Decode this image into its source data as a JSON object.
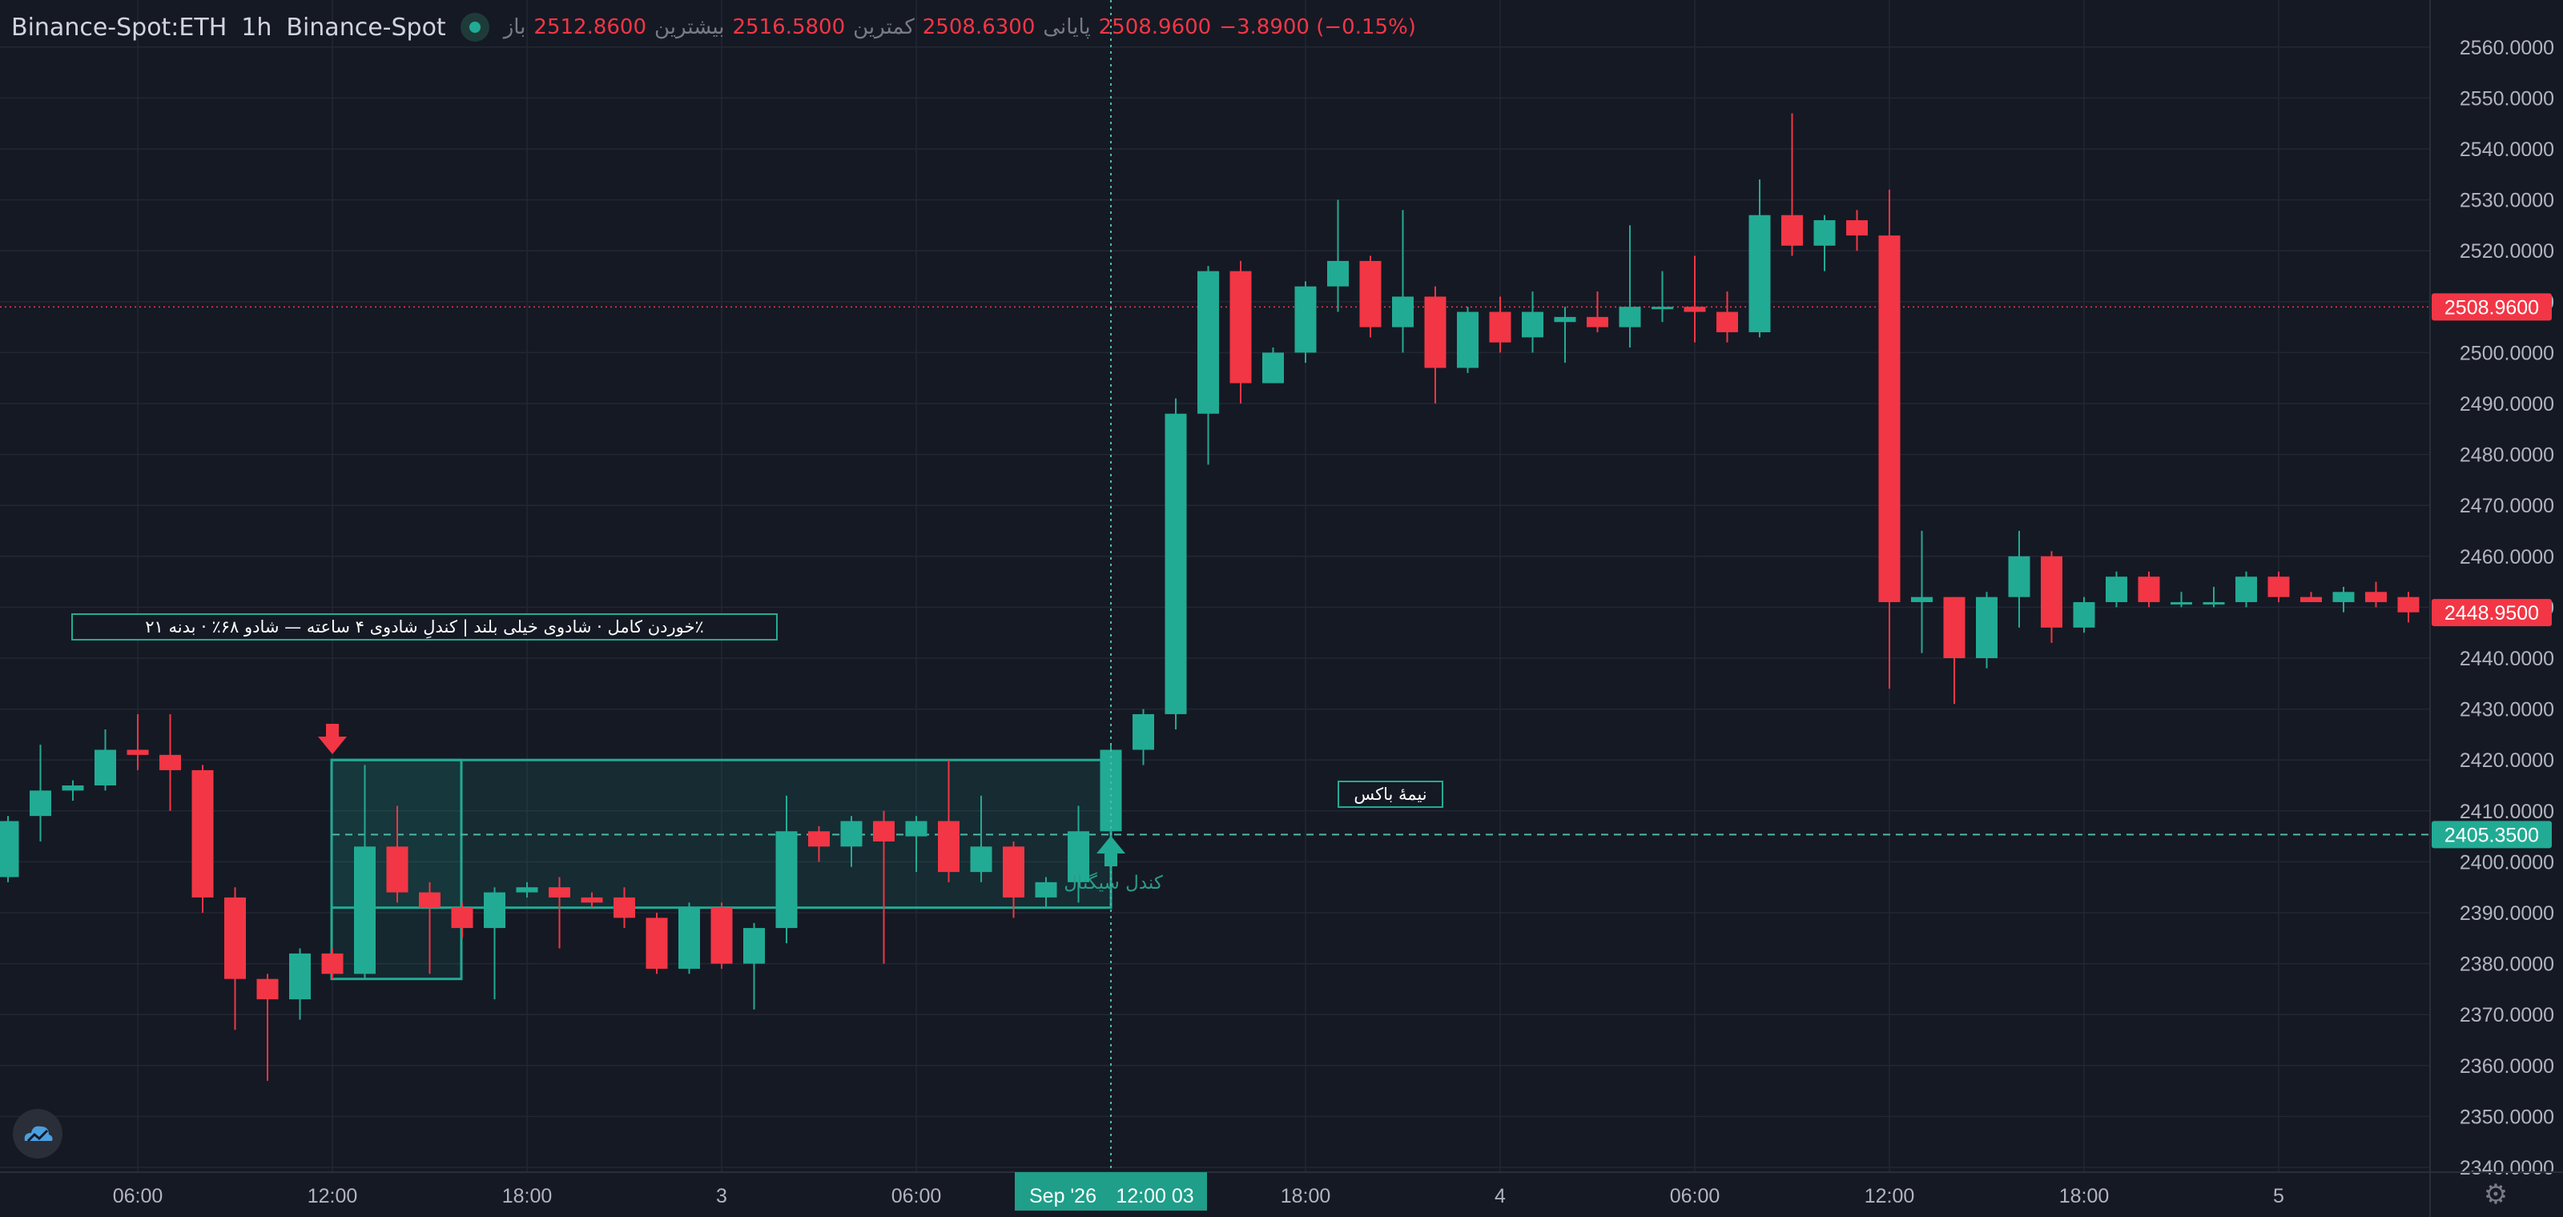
{
  "header": {
    "symbol": "Binance-Spot:ETH",
    "interval": "1h",
    "exchange": "Binance-Spot",
    "open_label": "باز",
    "open": "2512.8600",
    "high_label": "بیشترین",
    "high": "2516.5800",
    "low_label": "کمترین",
    "low": "2508.6300",
    "close_label": "پایانی",
    "close": "2508.9600",
    "change": "−3.8900 (−0.15%)"
  },
  "colors": {
    "background": "#151924",
    "grid": "#232733",
    "up": "#22ab94",
    "down": "#f23645",
    "axis_text": "#b2b5be"
  },
  "chart_data": {
    "type": "candlestick",
    "y_axis": {
      "min": 2340,
      "max": 2560,
      "step": 10,
      "tick_labels": [
        "2340.0000",
        "2350.0000",
        "2360.0000",
        "2370.0000",
        "2380.0000",
        "2390.0000",
        "2400.0000",
        "2410.0000",
        "2420.0000",
        "2430.0000",
        "2440.0000",
        "2450.0000",
        "2460.0000",
        "2470.0000",
        "2480.0000",
        "2490.0000",
        "2500.0000",
        "2510.0000",
        "2520.0000",
        "2530.0000",
        "2540.0000",
        "2550.0000",
        "2560.0000"
      ]
    },
    "x_axis": {
      "ticks": [
        {
          "i": 4,
          "label": "06:00"
        },
        {
          "i": 10,
          "label": "12:00"
        },
        {
          "i": 16,
          "label": "18:00"
        },
        {
          "i": 22,
          "label": "3"
        },
        {
          "i": 28,
          "label": "06:00"
        },
        {
          "i": 40,
          "label": "18:00"
        },
        {
          "i": 46,
          "label": "4"
        },
        {
          "i": 52,
          "label": "06:00"
        },
        {
          "i": 58,
          "label": "12:00"
        },
        {
          "i": 64,
          "label": "18:00"
        },
        {
          "i": 70,
          "label": "5"
        }
      ],
      "crosshair": {
        "i": 34,
        "date": "Sep '26",
        "time": "12:00 03"
      }
    },
    "candles": [
      [
        2397,
        2408,
        2396,
        2409
      ],
      [
        2409,
        2414,
        2404,
        2423
      ],
      [
        2414,
        2415,
        2412,
        2416
      ],
      [
        2415,
        2422,
        2414,
        2426
      ],
      [
        2422,
        2421,
        2418,
        2429
      ],
      [
        2421,
        2418,
        2410,
        2429
      ],
      [
        2418,
        2393,
        2390,
        2419
      ],
      [
        2393,
        2377,
        2367,
        2395
      ],
      [
        2377,
        2373,
        2357,
        2378
      ],
      [
        2373,
        2382,
        2369,
        2383
      ],
      [
        2382,
        2378,
        2377,
        2383
      ],
      [
        2378,
        2403,
        2377,
        2419
      ],
      [
        2403,
        2394,
        2392,
        2411
      ],
      [
        2394,
        2391,
        2378,
        2396
      ],
      [
        2391,
        2387,
        2385,
        2392
      ],
      [
        2387,
        2394,
        2373,
        2395
      ],
      [
        2394,
        2395,
        2393,
        2396
      ],
      [
        2395,
        2393,
        2383,
        2397
      ],
      [
        2393,
        2392,
        2391,
        2394
      ],
      [
        2393,
        2389,
        2387,
        2395
      ],
      [
        2389,
        2379,
        2378,
        2390
      ],
      [
        2379,
        2391,
        2378,
        2392
      ],
      [
        2391,
        2380,
        2379,
        2392
      ],
      [
        2380,
        2387,
        2371,
        2388
      ],
      [
        2387,
        2406,
        2384,
        2413
      ],
      [
        2406,
        2403,
        2400,
        2407
      ],
      [
        2403,
        2408,
        2399,
        2409
      ],
      [
        2408,
        2404,
        2380,
        2410
      ],
      [
        2405,
        2408,
        2398,
        2409
      ],
      [
        2408,
        2398,
        2396,
        2420
      ],
      [
        2398,
        2403,
        2396,
        2413
      ],
      [
        2403,
        2393,
        2389,
        2404
      ],
      [
        2393,
        2396,
        2391,
        2397
      ],
      [
        2396,
        2406,
        2392,
        2411
      ],
      [
        2406,
        2422,
        2405,
        2423
      ],
      [
        2422,
        2429,
        2419,
        2430
      ],
      [
        2429,
        2488,
        2426,
        2491
      ],
      [
        2488,
        2516,
        2478,
        2517
      ],
      [
        2516,
        2494,
        2490,
        2518
      ],
      [
        2494,
        2500,
        2494,
        2501
      ],
      [
        2500,
        2513,
        2498,
        2514
      ],
      [
        2513,
        2518,
        2508,
        2530
      ],
      [
        2518,
        2505,
        2503,
        2519
      ],
      [
        2505,
        2511,
        2500,
        2528
      ],
      [
        2511,
        2497,
        2490,
        2513
      ],
      [
        2497,
        2508,
        2496,
        2509
      ],
      [
        2508,
        2502,
        2500,
        2511
      ],
      [
        2503,
        2508,
        2500,
        2512
      ],
      [
        2506,
        2507,
        2498,
        2509
      ],
      [
        2507,
        2505,
        2504,
        2512
      ],
      [
        2505,
        2509,
        2501,
        2525
      ],
      [
        2509,
        2509,
        2506,
        2516
      ],
      [
        2509,
        2508,
        2502,
        2519
      ],
      [
        2508,
        2504,
        2502,
        2512
      ],
      [
        2504,
        2527,
        2503,
        2534
      ],
      [
        2527,
        2521,
        2519,
        2547
      ],
      [
        2521,
        2526,
        2516,
        2527
      ],
      [
        2526,
        2523,
        2520,
        2528
      ],
      [
        2523,
        2451,
        2434,
        2532
      ],
      [
        2451,
        2452,
        2441,
        2465
      ],
      [
        2452,
        2440,
        2431,
        2452
      ],
      [
        2440,
        2452,
        2438,
        2453
      ],
      [
        2452,
        2460,
        2446,
        2465
      ],
      [
        2460,
        2446,
        2443,
        2461
      ],
      [
        2446,
        2451,
        2445,
        2452
      ],
      [
        2451,
        2456,
        2450,
        2457
      ],
      [
        2456,
        2451,
        2450,
        2457
      ],
      [
        2451,
        2451,
        2450,
        2453
      ],
      [
        2451,
        2451,
        2450,
        2454
      ],
      [
        2451,
        2456,
        2450,
        2457
      ],
      [
        2456,
        2452,
        2451,
        2457
      ],
      [
        2452,
        2451,
        2451,
        2453
      ],
      [
        2451,
        2453,
        2449,
        2454
      ],
      [
        2453,
        2451,
        2450,
        2455
      ],
      [
        2452,
        2449,
        2447,
        2453
      ]
    ],
    "price_labels": [
      {
        "value": 2508.96,
        "text": "2508.9600",
        "color": "#f23645"
      },
      {
        "value": 2448.95,
        "text": "2448.9500",
        "color": "#f23645"
      },
      {
        "value": 2405.35,
        "text": "2405.3500",
        "color": "#22ab94"
      }
    ],
    "annotations": {
      "info_box_text": "٪خوردن کامل · شادوی خیلی بلند | کندلِ شادوی ۴ ساعته — شادو ۶۸٪ · بدنه ۲۱",
      "half_box_label": "نیمهٔ باکس",
      "signal_label": "کندل سیگنال"
    }
  }
}
